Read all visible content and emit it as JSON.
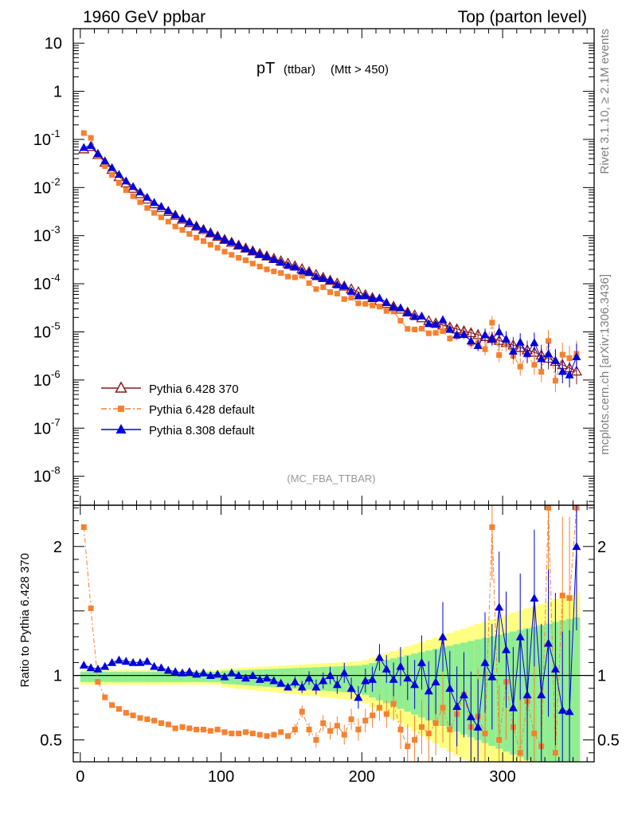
{
  "header": {
    "left": "1960 GeV ppbar",
    "right": "Top (parton level)"
  },
  "plot_title": {
    "main": "pT",
    "sub1": "(ttbar)",
    "sub2": "(Mtt > 450)"
  },
  "side_text": {
    "rivet": "Rivet 3.1.10, ≥ 2.1M events",
    "mcplots": "mcplots.cern.ch [arXiv:1306.3436]"
  },
  "analysis_label": "(MC_FBA_TTBAR)",
  "ratio_ylabel": "Ratio to Pythia 6.428 370",
  "colors": {
    "p6_370": "#8b1a1a",
    "p6_default": "#f58130",
    "p8": "#0000dd",
    "band_yellow": "#ffff80",
    "band_green": "#90ee90"
  },
  "chart_data": [
    {
      "type": "scatter",
      "panel": "main",
      "yscale": "log",
      "xlim": [
        -5,
        365
      ],
      "ylim": [
        2.5e-09,
        20
      ],
      "x_ticks": [
        0,
        100,
        200,
        300
      ],
      "y_ticks": [
        {
          "v": 10,
          "label": "10"
        },
        {
          "v": 1,
          "label": "1"
        },
        {
          "v": 0.1,
          "label": "10",
          "exp": "-1"
        },
        {
          "v": 0.01,
          "label": "10",
          "exp": "-2"
        },
        {
          "v": 0.001,
          "label": "10",
          "exp": "-3"
        },
        {
          "v": 0.0001,
          "label": "10",
          "exp": "-4"
        },
        {
          "v": 1e-05,
          "label": "10",
          "exp": "-5"
        },
        {
          "v": 1e-06,
          "label": "10",
          "exp": "-6"
        },
        {
          "v": 1e-07,
          "label": "10",
          "exp": "-7"
        },
        {
          "v": 1e-08,
          "label": "10",
          "exp": "-8"
        }
      ],
      "series": [
        {
          "name": "Pythia 6.428 370",
          "key": "p6_370",
          "marker": "triangle-open",
          "line": "solid"
        },
        {
          "name": "Pythia 6.428 default",
          "key": "p6_default",
          "marker": "square",
          "line": "dashdot"
        },
        {
          "name": "Pythia 8.308 default",
          "key": "p8",
          "marker": "triangle",
          "line": "solid"
        }
      ],
      "reference_curve": {
        "x": [
          2.5,
          7.5,
          15,
          30,
          50,
          75,
          100,
          125,
          150,
          175,
          200,
          225,
          250,
          275,
          300,
          325,
          355
        ],
        "log10_y": [
          -1.2,
          -1.15,
          -1.4,
          -1.85,
          -2.3,
          -2.7,
          -3.05,
          -3.35,
          -3.6,
          -3.9,
          -4.2,
          -4.5,
          -4.8,
          -5.0,
          -5.2,
          -5.45,
          -5.85
        ]
      },
      "bin_width": 5
    },
    {
      "type": "scatter",
      "panel": "ratio",
      "xlim": [
        -5,
        365
      ],
      "ylim": [
        0.33,
        2.32
      ],
      "x_ticks": [
        0,
        100,
        200,
        300
      ],
      "y_ticks": [
        {
          "v": 0.5,
          "label": "0.5"
        },
        {
          "v": 1,
          "label": "1"
        },
        {
          "v": 2,
          "label": "2"
        }
      ],
      "p6_default_ratio": {
        "x": [
          2.5,
          7.5,
          12.5,
          17.5,
          22.5,
          27.5,
          32.5,
          37.5,
          42.5,
          47.5,
          52.5,
          57.5,
          62.5,
          67.5,
          72.5,
          77.5,
          82.5,
          87.5,
          92.5,
          97.5,
          102.5,
          107.5,
          112.5,
          117.5,
          122.5,
          127.5,
          132.5,
          137.5,
          142.5,
          147.5,
          152.5,
          157.5,
          162.5,
          167.5,
          172.5,
          177.5,
          182.5,
          187.5,
          192.5,
          197.5,
          202.5,
          207.5,
          212.5,
          217.5,
          222.5,
          227.5,
          232.5,
          237.5,
          242.5,
          247.5,
          252.5,
          257.5,
          262.5,
          267.5,
          272.5,
          277.5,
          282.5,
          287.5,
          292.5,
          297.5,
          302.5,
          307.5,
          312.5,
          317.5,
          322.5,
          327.5,
          332.5,
          337.5,
          342.5,
          347.5,
          352.5
        ],
        "y": [
          2.15,
          1.52,
          0.95,
          0.83,
          0.77,
          0.74,
          0.71,
          0.69,
          0.67,
          0.66,
          0.65,
          0.63,
          0.62,
          0.59,
          0.6,
          0.59,
          0.58,
          0.58,
          0.57,
          0.58,
          0.56,
          0.55,
          0.55,
          0.56,
          0.55,
          0.54,
          0.53,
          0.54,
          0.56,
          0.53,
          0.58,
          0.72,
          0.58,
          0.5,
          0.63,
          0.57,
          0.61,
          0.54,
          0.66,
          0.58,
          0.65,
          0.69,
          0.75,
          0.7,
          0.78,
          0.58,
          0.45,
          0.5,
          0.6,
          0.55,
          0.63,
          0.75,
          0.58,
          0.7,
          0.85,
          0.6,
          0.68,
          0.55,
          2.15,
          0.5,
          0.95,
          0.6,
          0.4,
          0.8,
          0.55,
          0.45,
          2.3,
          0.4,
          1.62,
          1.6,
          2.3
        ]
      },
      "p8_ratio": {
        "x": [
          2.5,
          7.5,
          12.5,
          17.5,
          22.5,
          27.5,
          32.5,
          37.5,
          42.5,
          47.5,
          52.5,
          57.5,
          62.5,
          67.5,
          72.5,
          77.5,
          82.5,
          87.5,
          92.5,
          97.5,
          102.5,
          107.5,
          112.5,
          117.5,
          122.5,
          127.5,
          132.5,
          137.5,
          142.5,
          147.5,
          152.5,
          157.5,
          162.5,
          167.5,
          172.5,
          177.5,
          182.5,
          187.5,
          192.5,
          197.5,
          202.5,
          207.5,
          212.5,
          217.5,
          222.5,
          227.5,
          232.5,
          237.5,
          242.5,
          247.5,
          252.5,
          257.5,
          262.5,
          267.5,
          272.5,
          277.5,
          282.5,
          287.5,
          292.5,
          297.5,
          302.5,
          307.5,
          312.5,
          317.5,
          322.5,
          327.5,
          332.5,
          337.5,
          342.5,
          347.5,
          352.5
        ],
        "y": [
          1.08,
          1.06,
          1.05,
          1.07,
          1.1,
          1.12,
          1.11,
          1.1,
          1.1,
          1.11,
          1.07,
          1.06,
          1.04,
          1.03,
          1.02,
          1.03,
          1.01,
          1.02,
          1.0,
          1.01,
          0.99,
          1.02,
          1.0,
          0.98,
          1.0,
          0.97,
          0.98,
          0.96,
          0.94,
          0.91,
          0.95,
          0.91,
          0.98,
          0.91,
          0.96,
          1.0,
          0.93,
          1.02,
          0.9,
          0.83,
          0.96,
          0.97,
          1.14,
          1.05,
          0.97,
          1.07,
          0.98,
          0.93,
          1.1,
          0.88,
          0.95,
          1.3,
          0.9,
          0.76,
          0.85,
          0.68,
          0.6,
          1.1,
          0.99,
          1.53,
          1.2,
          0.75,
          1.3,
          0.85,
          1.6,
          0.85,
          1.25,
          1.05,
          0.73,
          0.72,
          2.0
        ]
      }
    }
  ]
}
